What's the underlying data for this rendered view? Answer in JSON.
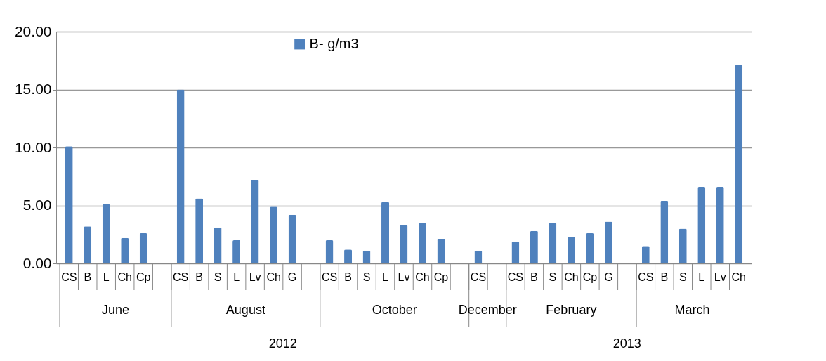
{
  "chart_data": {
    "type": "bar",
    "categories": [
      "CS",
      "B",
      "L",
      "Ch",
      "Cp",
      null,
      "CS",
      "B",
      "S",
      "L",
      "Lv",
      "Ch",
      "G",
      null,
      "CS",
      "B",
      "S",
      "L",
      "Lv",
      "Ch",
      "Cp",
      null,
      "CS",
      null,
      "CS",
      "B",
      "S",
      "Ch",
      "Cp",
      "G",
      null,
      "CS",
      "B",
      "S",
      "L",
      "Lv",
      "Ch"
    ],
    "series": [
      {
        "name": "B- g/m3",
        "color": "#4f81bd",
        "values": [
          10.1,
          3.2,
          5.1,
          2.2,
          2.6,
          null,
          15.0,
          5.6,
          3.1,
          2.0,
          7.2,
          4.9,
          4.2,
          null,
          2.0,
          1.2,
          1.1,
          5.3,
          3.3,
          3.5,
          2.1,
          null,
          1.1,
          null,
          1.9,
          2.8,
          3.5,
          2.3,
          2.6,
          3.6,
          null,
          1.5,
          5.4,
          3.0,
          6.6,
          6.6,
          17.1
        ]
      }
    ],
    "ylim": [
      0,
      20
    ],
    "yticks": [
      {
        "value": 0,
        "label": "0.00"
      },
      {
        "value": 5,
        "label": "5.00"
      },
      {
        "value": 10,
        "label": "10.00"
      },
      {
        "value": 15,
        "label": "15.00"
      },
      {
        "value": 20,
        "label": "20.00"
      }
    ],
    "grid": "y",
    "legend": "top",
    "annotations": [
      "June",
      "August",
      "October",
      "December",
      "February",
      "March",
      "2012",
      "2013"
    ]
  }
}
